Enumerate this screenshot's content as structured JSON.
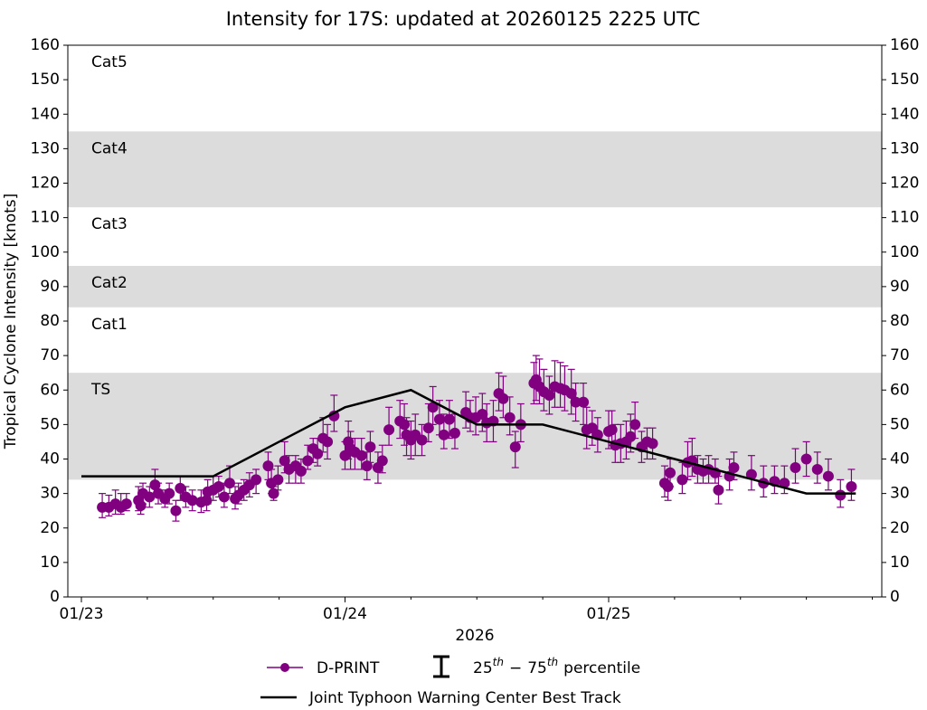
{
  "chart_data": {
    "type": "errorbar-line",
    "title": "Intensity for 17S: updated at 20260125 2225 UTC",
    "xlabel": "2026",
    "ylabel": "Tropical Cyclone Intensity [knots]",
    "xlim": [
      "2026-01-23T00:00",
      "2026-01-26T00:00"
    ],
    "xticks": [
      {
        "value": "2026-01-23T00:00",
        "label": "01/23"
      },
      {
        "value": "2026-01-24T00:00",
        "label": "01/24"
      },
      {
        "value": "2026-01-25T00:00",
        "label": "01/25"
      }
    ],
    "xminorticks": [
      "2026-01-23T06:00",
      "2026-01-23T12:00",
      "2026-01-23T18:00",
      "2026-01-24T06:00",
      "2026-01-24T12:00",
      "2026-01-24T18:00",
      "2026-01-25T06:00",
      "2026-01-25T12:00",
      "2026-01-25T18:00",
      "2026-01-26T00:00"
    ],
    "ylim": [
      0,
      160
    ],
    "yticks": [
      0,
      10,
      20,
      30,
      40,
      50,
      60,
      70,
      80,
      90,
      100,
      110,
      120,
      130,
      140,
      150,
      160
    ],
    "y2lim": [
      0,
      160
    ],
    "y2ticks": [
      0,
      10,
      20,
      30,
      40,
      50,
      60,
      70,
      80,
      90,
      100,
      110,
      120,
      130,
      140,
      150,
      160
    ],
    "bands": [
      {
        "label": "TS",
        "range": [
          34,
          65
        ],
        "shaded": true
      },
      {
        "label": "Cat1",
        "range": [
          65,
          84
        ],
        "shaded": false
      },
      {
        "label": "Cat2",
        "range": [
          84,
          96
        ],
        "shaded": true
      },
      {
        "label": "Cat3",
        "range": [
          96,
          113
        ],
        "shaded": false
      },
      {
        "label": "Cat4",
        "range": [
          113,
          135
        ],
        "shaded": true
      },
      {
        "label": "Cat5",
        "range": [
          135,
          160
        ],
        "shaded": false
      }
    ],
    "band_color": "#dcdcdc",
    "errorbar_legend": [
      "25",
      "th",
      "−",
      "75",
      "th",
      "percentile"
    ],
    "series": [
      {
        "name": "D-PRINT",
        "color": "#800080",
        "x": [
          "2026-01-23T01:54",
          "2026-01-23T02:30",
          "2026-01-23T03:06",
          "2026-01-23T03:36",
          "2026-01-23T04:06",
          "2026-01-23T05:12",
          "2026-01-23T05:24",
          "2026-01-23T05:36",
          "2026-01-23T06:12",
          "2026-01-23T06:42",
          "2026-01-23T07:00",
          "2026-01-23T07:36",
          "2026-01-23T08:00",
          "2026-01-23T08:36",
          "2026-01-23T09:00",
          "2026-01-23T09:30",
          "2026-01-23T10:06",
          "2026-01-23T10:54",
          "2026-01-23T11:24",
          "2026-01-23T11:30",
          "2026-01-23T12:00",
          "2026-01-23T12:30",
          "2026-01-23T13:00",
          "2026-01-23T13:30",
          "2026-01-23T14:00",
          "2026-01-23T14:18",
          "2026-01-23T14:48",
          "2026-01-23T15:18",
          "2026-01-23T15:54",
          "2026-01-23T17:00",
          "2026-01-23T17:18",
          "2026-01-23T17:30",
          "2026-01-23T17:54",
          "2026-01-23T18:30",
          "2026-01-23T18:54",
          "2026-01-23T19:30",
          "2026-01-23T20:00",
          "2026-01-23T20:36",
          "2026-01-23T21:06",
          "2026-01-23T21:30",
          "2026-01-23T22:00",
          "2026-01-23T22:24",
          "2026-01-23T23:00",
          "2026-01-24T00:00",
          "2026-01-24T00:18",
          "2026-01-24T00:30",
          "2026-01-24T00:54",
          "2026-01-24T01:30",
          "2026-01-24T02:00",
          "2026-01-24T02:18",
          "2026-01-24T03:00",
          "2026-01-24T03:24",
          "2026-01-24T04:00",
          "2026-01-24T05:00",
          "2026-01-24T05:24",
          "2026-01-24T05:36",
          "2026-01-24T06:00",
          "2026-01-24T06:24",
          "2026-01-24T07:00",
          "2026-01-24T07:36",
          "2026-01-24T08:00",
          "2026-01-24T08:36",
          "2026-01-24T09:00",
          "2026-01-24T09:30",
          "2026-01-24T10:00",
          "2026-01-24T11:00",
          "2026-01-24T11:24",
          "2026-01-24T11:54",
          "2026-01-24T12:30",
          "2026-01-24T12:54",
          "2026-01-24T13:30",
          "2026-01-24T14:00",
          "2026-01-24T14:24",
          "2026-01-24T15:00",
          "2026-01-24T15:30",
          "2026-01-24T16:00",
          "2026-01-24T17:12",
          "2026-01-24T17:24",
          "2026-01-24T17:42",
          "2026-01-24T18:06",
          "2026-01-24T18:36",
          "2026-01-24T19:06",
          "2026-01-24T19:36",
          "2026-01-24T20:00",
          "2026-01-24T20:36",
          "2026-01-24T21:00",
          "2026-01-24T21:42",
          "2026-01-24T22:00",
          "2026-01-24T22:30",
          "2026-01-24T23:00",
          "2026-01-25T00:00",
          "2026-01-25T00:18",
          "2026-01-25T00:36",
          "2026-01-25T01:06",
          "2026-01-25T01:36",
          "2026-01-25T02:00",
          "2026-01-25T02:24",
          "2026-01-25T03:00",
          "2026-01-25T03:30",
          "2026-01-25T04:00",
          "2026-01-25T05:06",
          "2026-01-25T05:24",
          "2026-01-25T05:36",
          "2026-01-25T06:42",
          "2026-01-25T07:12",
          "2026-01-25T07:36",
          "2026-01-25T08:06",
          "2026-01-25T08:36",
          "2026-01-25T09:06",
          "2026-01-25T09:42",
          "2026-01-25T10:00",
          "2026-01-25T11:00",
          "2026-01-25T11:24",
          "2026-01-25T13:00",
          "2026-01-25T14:06",
          "2026-01-25T15:06",
          "2026-01-25T16:00",
          "2026-01-25T17:00",
          "2026-01-25T18:00",
          "2026-01-25T19:00",
          "2026-01-25T20:00",
          "2026-01-25T21:06",
          "2026-01-25T22:06"
        ],
        "values": [
          26,
          26,
          27,
          26,
          27,
          28,
          26.5,
          30,
          29,
          32.5,
          30,
          28.5,
          30,
          25,
          31.5,
          29,
          28,
          27.5,
          28,
          30.5,
          31,
          32,
          29,
          33,
          28.5,
          29.5,
          31,
          32.5,
          34,
          38,
          33,
          30,
          34,
          39.5,
          37,
          38,
          36.5,
          39.5,
          43,
          41.5,
          46,
          45,
          52.5,
          41,
          45,
          43,
          42,
          41,
          38,
          43.5,
          37.5,
          39.5,
          48.5,
          51,
          50,
          47,
          45.5,
          47,
          45.5,
          49,
          55,
          51.5,
          47,
          51.5,
          47.5,
          53.5,
          52,
          52,
          53,
          50.5,
          51,
          59,
          57.5,
          52,
          43.5,
          50,
          62,
          63,
          61,
          59.5,
          58.5,
          61,
          60.5,
          60,
          59,
          56.5,
          56.5,
          48.5,
          49,
          47,
          48,
          48.5,
          44,
          44.5,
          45,
          46.5,
          50,
          43.5,
          45,
          44.5,
          33,
          32,
          36,
          34,
          39,
          39.5,
          37,
          36.5,
          37,
          36,
          31,
          35,
          37.5,
          35.5,
          33,
          33.5,
          33,
          37.5,
          40,
          37,
          35,
          29.5,
          32
        ],
        "p25": [
          23,
          23.5,
          24,
          24,
          25,
          25,
          24,
          27,
          26,
          29,
          27,
          26,
          27,
          22,
          28,
          26,
          25,
          24.5,
          25,
          27,
          28,
          29,
          26,
          30,
          25.5,
          27,
          28,
          29,
          30,
          34,
          30,
          28,
          31,
          36,
          33,
          33,
          33,
          37,
          39,
          38,
          42,
          40,
          48,
          37,
          40,
          37,
          37,
          37,
          34,
          39,
          33,
          36,
          44,
          46,
          44,
          41,
          40,
          41,
          41,
          45,
          50,
          47,
          43,
          46,
          43,
          49,
          48,
          47,
          48,
          45,
          45,
          54,
          52,
          47,
          37.5,
          45,
          56,
          57,
          56,
          54,
          53,
          55,
          55,
          54,
          53,
          51,
          50,
          43,
          44,
          42,
          43,
          44,
          39,
          39,
          40,
          42,
          46,
          39,
          40,
          40,
          29,
          28,
          32,
          30,
          34,
          35,
          33,
          33,
          33,
          33,
          27,
          31,
          34,
          31,
          29,
          30,
          30,
          33,
          35,
          33,
          31,
          26,
          28
        ],
        "p75": [
          30,
          29.5,
          31,
          30,
          30,
          32,
          29,
          33,
          32,
          37,
          33,
          31,
          33,
          28,
          35,
          32,
          31,
          31,
          31,
          34,
          35,
          35,
          33,
          38,
          32,
          33,
          34,
          36,
          37,
          42,
          37,
          32,
          38,
          45,
          41,
          41,
          40,
          44,
          46,
          46,
          52,
          50,
          58.5,
          45,
          51,
          48,
          46,
          46,
          42,
          48,
          42,
          44,
          55,
          57,
          56,
          52,
          51,
          53,
          50,
          56,
          61,
          57,
          53,
          57,
          53,
          59.5,
          57,
          58,
          59,
          56,
          57,
          65,
          64,
          58,
          48,
          56,
          68,
          70,
          69,
          66,
          64,
          68.5,
          68,
          67,
          66,
          62,
          62,
          55,
          54,
          52,
          54,
          54,
          50,
          50,
          51,
          53,
          56.5,
          48,
          49,
          49,
          38,
          36,
          40,
          39,
          45,
          46,
          41,
          40,
          41,
          40,
          35,
          40,
          42,
          41,
          38,
          38,
          38,
          43,
          45,
          42,
          40,
          34,
          37
        ]
      },
      {
        "name": "Joint Typhoon Warning Center Best Track",
        "color": "#000000",
        "x": [
          "2026-01-23T00:00",
          "2026-01-23T06:00",
          "2026-01-23T12:00",
          "2026-01-23T18:00",
          "2026-01-24T00:00",
          "2026-01-24T06:00",
          "2026-01-24T12:00",
          "2026-01-24T18:00",
          "2026-01-25T00:00",
          "2026-01-25T06:00",
          "2026-01-25T12:00",
          "2026-01-25T18:00",
          "2026-01-25T22:30"
        ],
        "values": [
          35,
          35,
          35,
          45,
          55,
          60,
          50,
          50,
          45,
          40,
          35,
          30,
          30
        ]
      }
    ]
  }
}
